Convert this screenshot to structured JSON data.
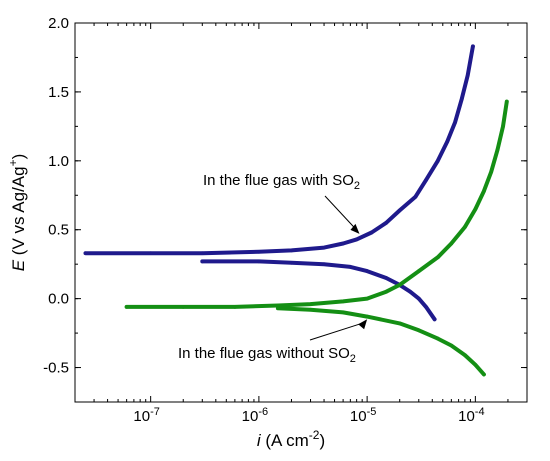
{
  "chart_data": {
    "type": "line",
    "title": "",
    "xlabel": "i (A cm-2)",
    "ylabel": "E (V vs Ag/Ag+)",
    "xscale": "log",
    "xlim": [
      2e-08,
      0.0003
    ],
    "ylim": [
      -0.75,
      2.0
    ],
    "grid": false,
    "x_ticks": [
      1e-07,
      1e-06,
      1e-05,
      0.0001
    ],
    "x_tick_labels": [
      "10-7",
      "10-6",
      "10-5",
      "10-4"
    ],
    "y_ticks": [
      -0.5,
      0.0,
      0.5,
      1.0,
      1.5,
      2.0
    ],
    "y_tick_labels": [
      "-0.5",
      "0.0",
      "0.5",
      "1.0",
      "1.5",
      "2.0"
    ],
    "annotations": [
      {
        "text": "In the flue gas with SO2",
        "series": "blue",
        "points_to": [
          8.5e-06,
          0.47
        ]
      },
      {
        "text": "In the flue gas without SO2",
        "series": "green",
        "points_to": [
          1e-05,
          -0.15
        ]
      }
    ],
    "series": [
      {
        "color": "#1f1a8c",
        "x": [
          2.5e-08,
          1e-07,
          3e-07,
          1e-06,
          2e-06,
          4e-06,
          6e-06,
          8e-06,
          1.1e-05,
          1.5e-05,
          2e-05,
          2.8e-05,
          3.5e-05,
          4.5e-05,
          5.5e-05,
          6.5e-05,
          7.5e-05,
          8.5e-05,
          9.5e-05
        ],
        "y": [
          0.33,
          0.33,
          0.33,
          0.34,
          0.35,
          0.37,
          0.4,
          0.43,
          0.48,
          0.55,
          0.64,
          0.74,
          0.86,
          1.0,
          1.14,
          1.28,
          1.45,
          1.62,
          1.83
        ]
      },
      {
        "color": "#1f1a8c",
        "x": [
          3e-07,
          1e-06,
          2e-06,
          4e-06,
          7e-06,
          1e-05,
          1.5e-05,
          2e-05,
          2.5e-05,
          3e-05,
          3.5e-05,
          4.2e-05
        ],
        "y": [
          0.27,
          0.27,
          0.26,
          0.25,
          0.23,
          0.2,
          0.15,
          0.1,
          0.05,
          0.0,
          -0.06,
          -0.15
        ]
      },
      {
        "color": "#148f14",
        "x": [
          6e-08,
          2e-07,
          6e-07,
          1.5e-06,
          3e-06,
          6e-06,
          1e-05,
          1.5e-05,
          2e-05,
          3e-05,
          4.5e-05,
          6e-05,
          8e-05,
          0.0001,
          0.00012,
          0.00014,
          0.00016,
          0.00018,
          0.000195
        ],
        "y": [
          -0.06,
          -0.06,
          -0.06,
          -0.05,
          -0.04,
          -0.02,
          0.0,
          0.05,
          0.1,
          0.2,
          0.3,
          0.4,
          0.52,
          0.65,
          0.78,
          0.92,
          1.08,
          1.25,
          1.43
        ]
      },
      {
        "color": "#148f14",
        "x": [
          1.5e-06,
          3e-06,
          6e-06,
          1e-05,
          2e-05,
          3e-05,
          4.5e-05,
          6e-05,
          8e-05,
          0.0001,
          0.00012
        ],
        "y": [
          -0.07,
          -0.08,
          -0.1,
          -0.13,
          -0.18,
          -0.23,
          -0.29,
          -0.34,
          -0.41,
          -0.48,
          -0.55
        ]
      }
    ]
  }
}
